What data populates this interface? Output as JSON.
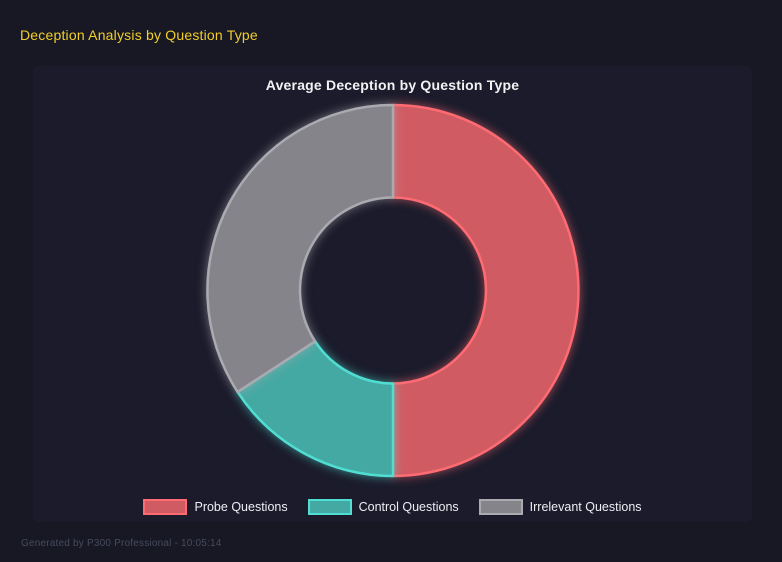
{
  "page": {
    "title": "Deception Analysis by Question Type",
    "footer": "Generated by P300 Professional - 10:05:14",
    "background_color": "#171823",
    "panel_color": "#1b1b2b",
    "title_color": "#f2ce2b"
  },
  "chart_data": {
    "type": "pie",
    "variant": "donut",
    "title": "Average Deception by Question Type",
    "categories": [
      "Probe Questions",
      "Control Questions",
      "Irrelevant Questions"
    ],
    "values_percent": [
      50,
      15.8,
      34.2
    ],
    "start_angle_deg": 0,
    "direction": "clockwise",
    "cutout_percent": 50,
    "legend_position": "bottom",
    "grid": false,
    "segment_fills": [
      "#d15b63",
      "#45a9a3",
      "#84848a"
    ],
    "segment_borders": [
      "#ff6b72",
      "#50ded2",
      "#aaaab0"
    ],
    "title_color": "#f2f2f4",
    "label_color": "#eceef2"
  }
}
